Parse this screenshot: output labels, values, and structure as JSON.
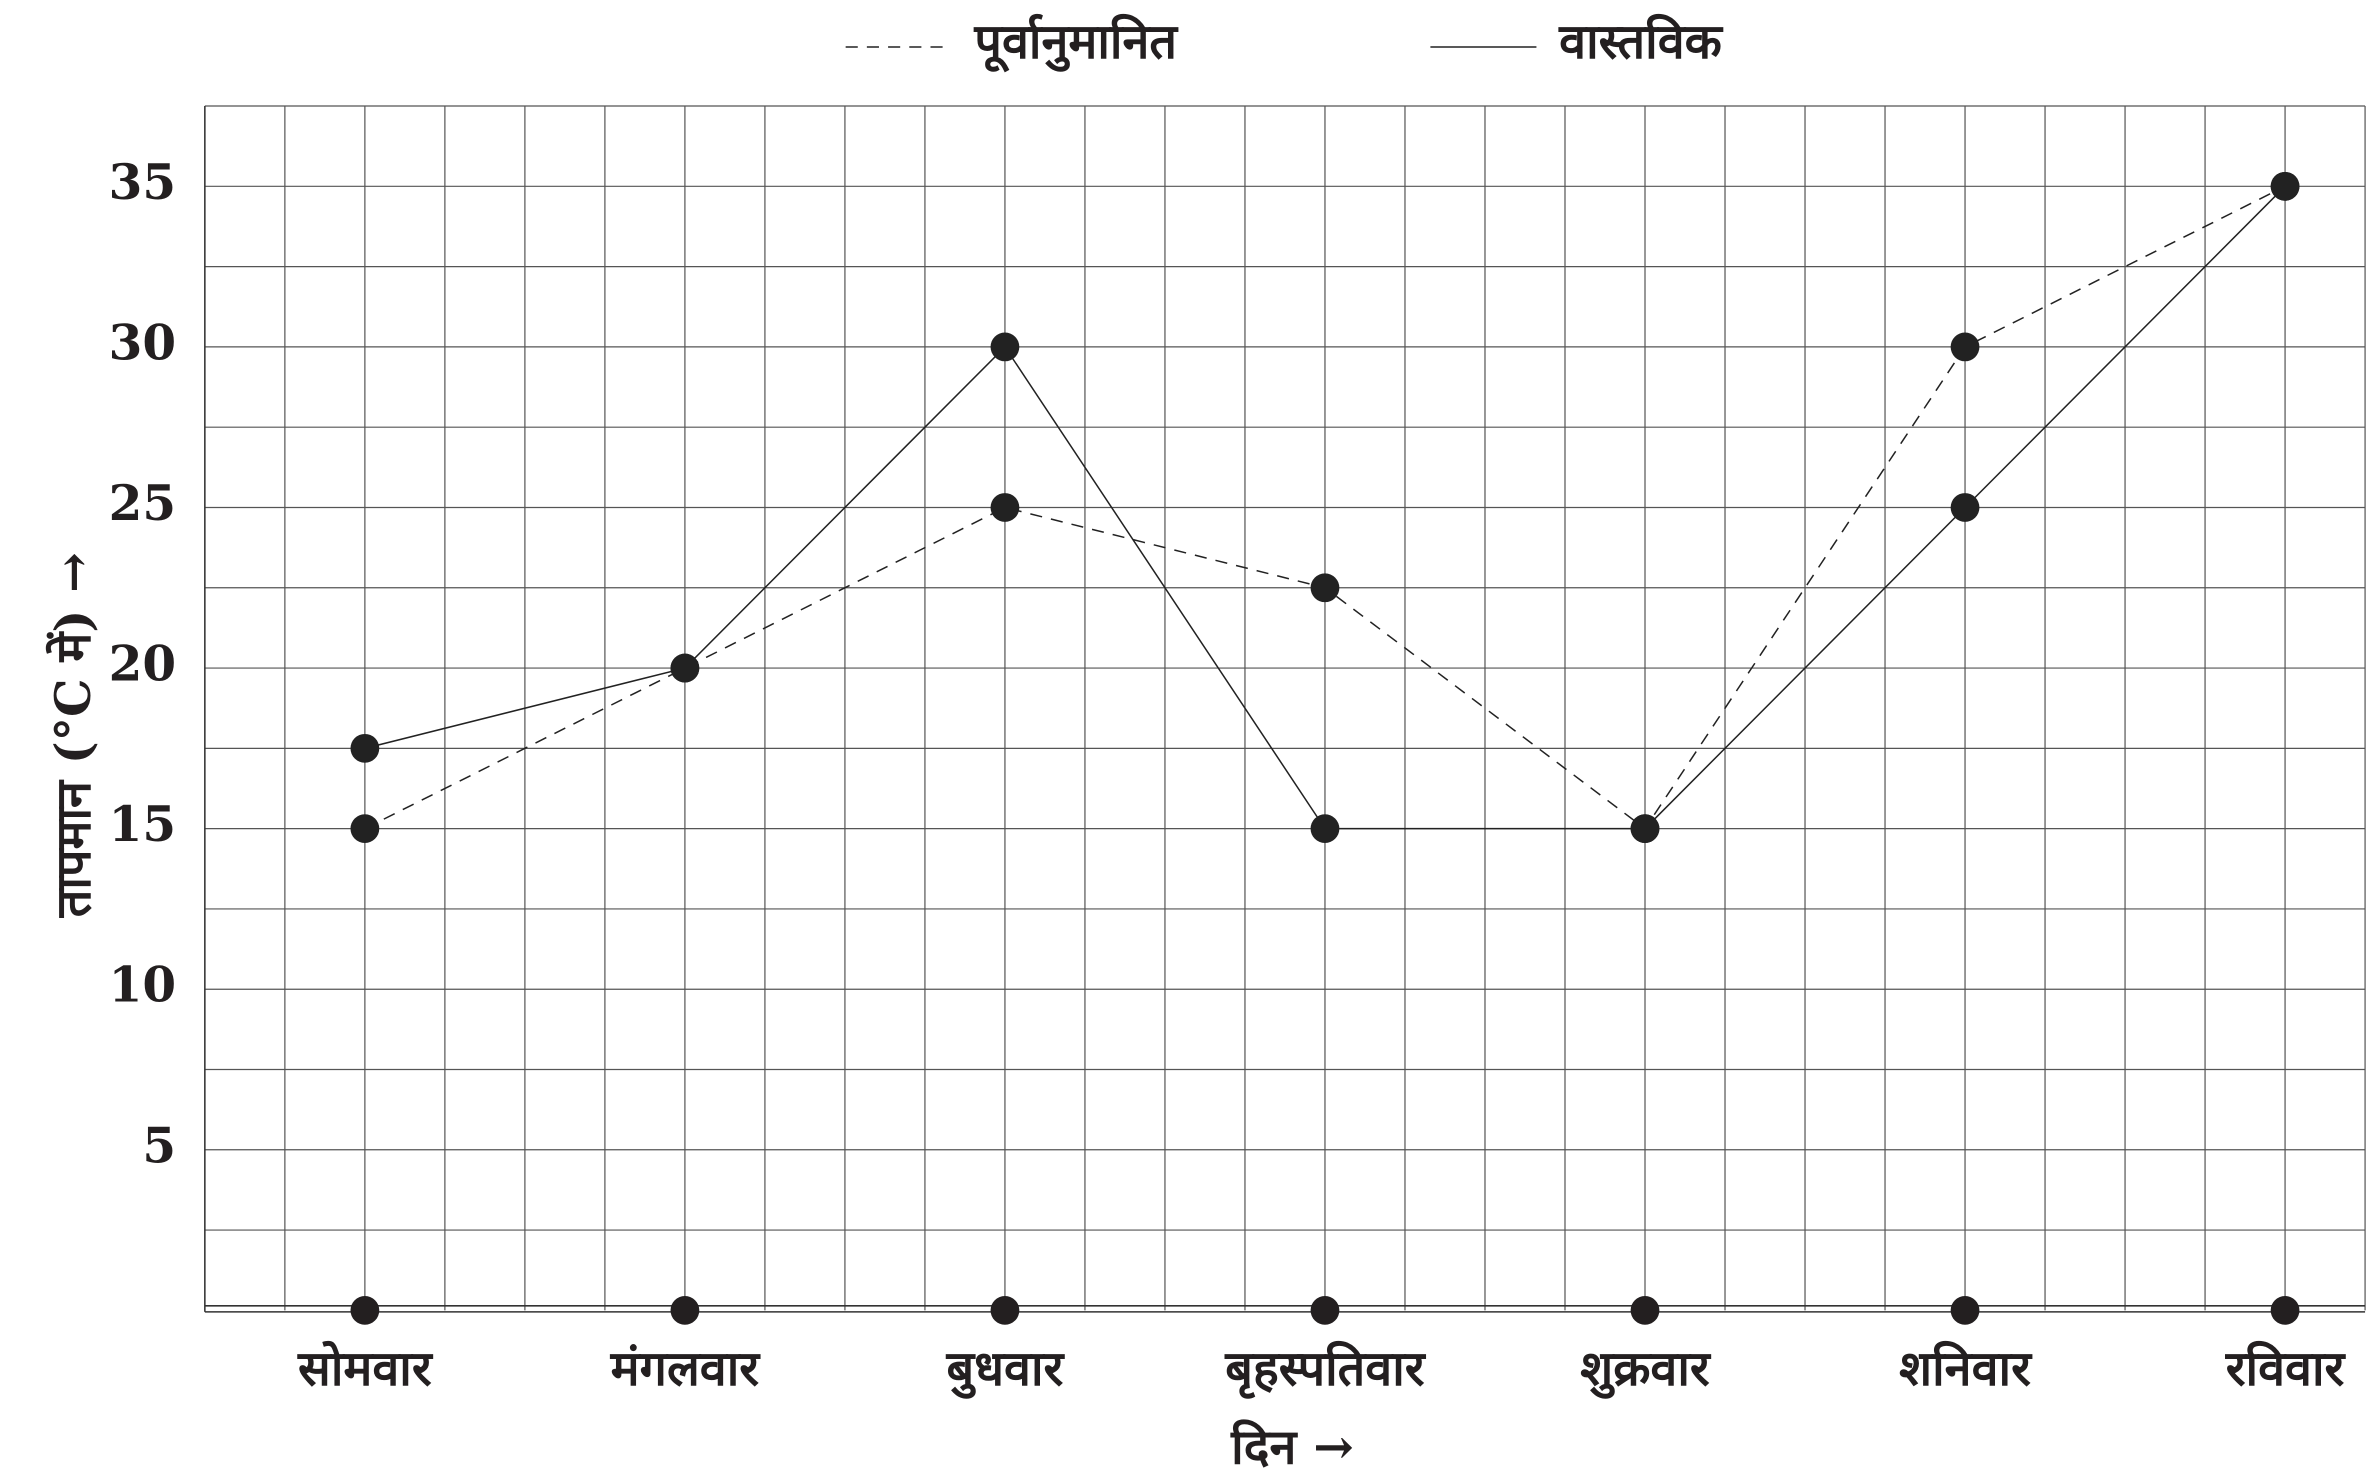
{
  "chart_data": {
    "type": "line",
    "x_label": "दिन →",
    "y_label": "तापमान (°C में) →",
    "categories": [
      "सोमवार",
      "मंगलवार",
      "बुधवार",
      "बृहस्पतिवार",
      "शुक्रवार",
      "शनिवार",
      "रविवार"
    ],
    "series": [
      {
        "name": "पूर्वानुमानित",
        "color": "#222222",
        "style": "dashed",
        "values": [
          15,
          20,
          25,
          22.5,
          15,
          30,
          35
        ]
      },
      {
        "name": "वास्तविक",
        "color": "#222222",
        "style": "solid",
        "values": [
          17.5,
          20,
          30,
          15,
          15,
          25,
          35
        ]
      }
    ],
    "ylim": [
      0,
      37.5
    ],
    "yticks": [
      5,
      10,
      15,
      20,
      25,
      30,
      35
    ],
    "grid": true,
    "legend": "top"
  }
}
